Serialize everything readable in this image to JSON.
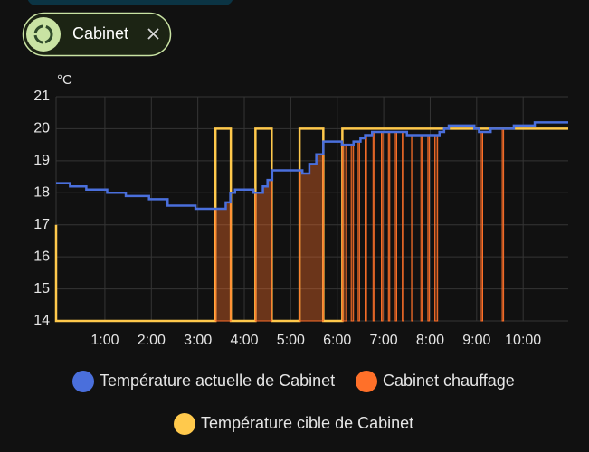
{
  "filter": {
    "label": "Cabinet"
  },
  "chart_data": {
    "type": "line",
    "y_label": "°C",
    "step": true,
    "grid": true,
    "xlim": [
      -0.05,
      10.97
    ],
    "ylim": [
      14,
      21
    ],
    "xticks": [
      {
        "value": 1,
        "label": "1:00"
      },
      {
        "value": 2,
        "label": "2:00"
      },
      {
        "value": 3,
        "label": "3:00"
      },
      {
        "value": 4,
        "label": "4:00"
      },
      {
        "value": 5,
        "label": "5:00"
      },
      {
        "value": 6,
        "label": "6:00"
      },
      {
        "value": 7,
        "label": "7:00"
      },
      {
        "value": 8,
        "label": "8:00"
      },
      {
        "value": 9,
        "label": "9:00"
      },
      {
        "value": 10,
        "label": "10:00"
      }
    ],
    "yticks": [
      14,
      15,
      16,
      17,
      18,
      19,
      20,
      21
    ],
    "legend": "bottom",
    "series": [
      {
        "name": "Température actuelle de Cabinet",
        "color": "#4a6fdc",
        "kind": "line",
        "x": [
          -0.05,
          0.25,
          0.6,
          1.05,
          1.45,
          1.95,
          2.35,
          2.95,
          3.6,
          3.7,
          3.8,
          4.2,
          4.4,
          4.5,
          4.6,
          5.25,
          5.4,
          5.55,
          5.7,
          6.1,
          6.35,
          6.5,
          6.6,
          6.75,
          7.5,
          8.2,
          8.3,
          8.4,
          8.95,
          9.05,
          9.3,
          9.8,
          10.25,
          10.97
        ],
        "values": [
          18.3,
          18.2,
          18.1,
          18.0,
          17.9,
          17.8,
          17.6,
          17.5,
          17.7,
          18.0,
          18.1,
          18.0,
          18.2,
          18.4,
          18.7,
          18.6,
          18.9,
          19.2,
          19.6,
          19.5,
          19.6,
          19.7,
          19.8,
          19.9,
          19.8,
          19.9,
          20.0,
          20.1,
          20.0,
          19.9,
          20.0,
          20.1,
          20.2,
          20.2
        ]
      },
      {
        "name": "Cabinet chauffage",
        "color": "#ff7029",
        "kind": "area",
        "x": [
          3.38,
          3.6,
          3.71,
          3.72,
          4.24,
          4.4,
          4.5,
          4.59,
          4.6,
          5.19,
          5.25,
          5.4,
          5.55,
          5.7,
          5.71,
          6.11,
          6.2,
          6.21,
          6.3,
          6.35,
          6.36,
          6.45,
          6.48,
          6.49,
          6.6,
          6.63,
          6.64,
          6.77,
          6.8,
          6.81,
          6.95,
          6.98,
          6.99,
          7.1,
          7.13,
          7.14,
          7.25,
          7.28,
          7.29,
          7.4,
          7.43,
          7.44,
          7.6,
          7.63,
          7.64,
          7.8,
          7.83,
          7.84,
          7.95,
          7.98,
          7.99,
          8.1,
          8.16,
          8.17,
          9.1,
          9.13,
          9.14,
          9.55,
          9.58
        ],
        "values": [
          17.5,
          17.7,
          17.7,
          null,
          18.0,
          18.2,
          18.4,
          18.4,
          null,
          18.7,
          18.6,
          18.9,
          19.2,
          19.2,
          null,
          19.5,
          19.5,
          null,
          19.5,
          19.5,
          null,
          19.6,
          19.6,
          null,
          19.8,
          19.8,
          null,
          19.9,
          19.9,
          null,
          19.9,
          19.9,
          null,
          19.9,
          19.9,
          null,
          19.9,
          19.9,
          null,
          19.9,
          19.9,
          null,
          19.8,
          19.8,
          null,
          19.8,
          19.8,
          null,
          19.8,
          19.8,
          null,
          19.8,
          19.8,
          null,
          19.9,
          19.9,
          null,
          20.0,
          20.0
        ]
      },
      {
        "name": "Température cible de Cabinet",
        "color": "#ffc94c",
        "kind": "line",
        "x": [
          -0.05,
          -0.05,
          3.38,
          3.71,
          4.24,
          4.59,
          5.19,
          5.7,
          6.11,
          10.97
        ],
        "values": [
          17,
          14,
          20,
          14,
          20,
          14,
          20,
          14,
          20,
          20
        ]
      }
    ]
  }
}
